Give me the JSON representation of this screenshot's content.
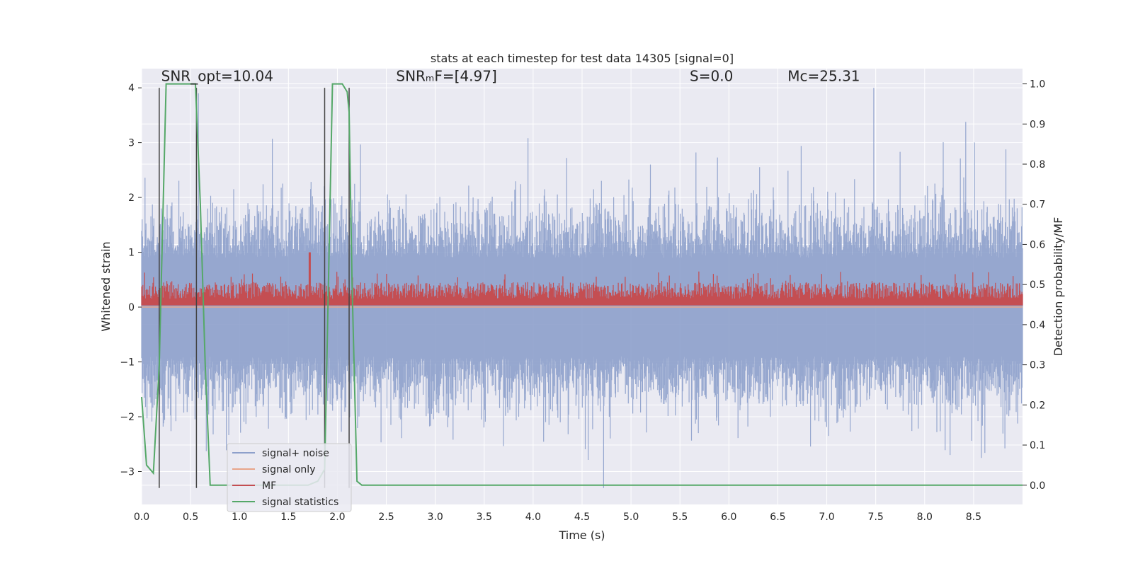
{
  "chart_data": {
    "type": "line",
    "title": "stats at each timestep for test data 14305 [signal=0]",
    "xlabel": "Time (s)",
    "ylabel": "Whitened strain",
    "y2label": "Detection probability/MF",
    "xlim": [
      0.0,
      9.0
    ],
    "ylim": [
      -3.6,
      4.35
    ],
    "y2lim": [
      -0.048,
      1.038
    ],
    "xticks": [
      0.0,
      0.5,
      1.0,
      1.5,
      2.0,
      2.5,
      3.0,
      3.5,
      4.0,
      4.5,
      5.0,
      5.5,
      6.0,
      6.5,
      7.0,
      7.5,
      8.0,
      8.5
    ],
    "xtick_labels": [
      "0.0",
      "0.5",
      "1.0",
      "1.5",
      "2.0",
      "2.5",
      "3.0",
      "3.5",
      "4.0",
      "4.5",
      "5.0",
      "5.5",
      "6.0",
      "6.5",
      "7.0",
      "7.5",
      "8.0",
      "8.5"
    ],
    "yticks": [
      -3,
      -2,
      -1,
      0,
      1,
      2,
      3,
      4
    ],
    "ytick_labels": [
      "−3",
      "−2",
      "−1",
      "0",
      "1",
      "2",
      "3",
      "4"
    ],
    "y2ticks": [
      0.0,
      0.1,
      0.2,
      0.3,
      0.4,
      0.5,
      0.6,
      0.7,
      0.8,
      0.9,
      1.0
    ],
    "y2tick_labels": [
      "0.0",
      "0.1",
      "0.2",
      "0.3",
      "0.4",
      "0.5",
      "0.6",
      "0.7",
      "0.8",
      "0.9",
      "1.0"
    ],
    "annotations": [
      {
        "text": "SNR_opt=10.04",
        "x": 0.2,
        "y": 4.1
      },
      {
        "text": "SNRₘF=[4.97]",
        "x": 2.6,
        "y": 4.1
      },
      {
        "text": "S=0.0",
        "x": 5.6,
        "y": 4.1
      },
      {
        "text": "Mᴄ=25.31",
        "x": 6.6,
        "y": 4.1
      }
    ],
    "vlines": [
      {
        "x": 0.18,
        "ymin": -3.3,
        "ymax": 4.0
      },
      {
        "x": 0.56,
        "ymin": -3.3,
        "ymax": 4.0
      },
      {
        "x": 1.87,
        "ymin": -3.3,
        "ymax": 4.0
      },
      {
        "x": 2.12,
        "ymin": -3.3,
        "ymax": 4.0
      }
    ],
    "series": [
      {
        "name": "signal+ noise",
        "axis": "left",
        "style": "noise",
        "color": "#8da0cb",
        "envelope_max": 4.0,
        "envelope_min": -3.3,
        "typical_range": [
          -1.8,
          1.8
        ]
      },
      {
        "name": "signal only",
        "axis": "left",
        "style": "flat",
        "color": "#e8a58a",
        "values": [
          0.0,
          0.0
        ]
      },
      {
        "name": "MF",
        "axis": "left",
        "style": "mf",
        "color": "#c44e52",
        "baseline": 0.0,
        "typical_max": 0.6,
        "peak_max": 1.0
      },
      {
        "name": "signal statistics",
        "axis": "right",
        "style": "line",
        "color": "#55a868",
        "x": [
          0.0,
          0.05,
          0.12,
          0.18,
          0.25,
          0.3,
          0.5,
          0.55,
          0.6,
          0.65,
          0.7,
          0.75,
          1.7,
          1.8,
          1.87,
          1.95,
          2.0,
          2.05,
          2.1,
          2.12,
          2.15,
          2.2,
          2.25,
          9.0
        ],
        "values": [
          0.22,
          0.05,
          0.03,
          0.3,
          1.0,
          1.0,
          1.0,
          1.0,
          0.7,
          0.3,
          0.0,
          0.0,
          0.0,
          0.01,
          0.04,
          1.0,
          1.0,
          1.0,
          0.98,
          0.93,
          0.5,
          0.01,
          0.0,
          0.0
        ]
      }
    ],
    "legend": {
      "position": "lower-left",
      "entries": [
        {
          "label": "signal+ noise",
          "color": "#8da0cb"
        },
        {
          "label": "signal only",
          "color": "#e8a58a"
        },
        {
          "label": "MF",
          "color": "#c44e52"
        },
        {
          "label": "signal statistics",
          "color": "#55a868"
        }
      ]
    },
    "grid": true,
    "background": "#eaeaf2"
  }
}
